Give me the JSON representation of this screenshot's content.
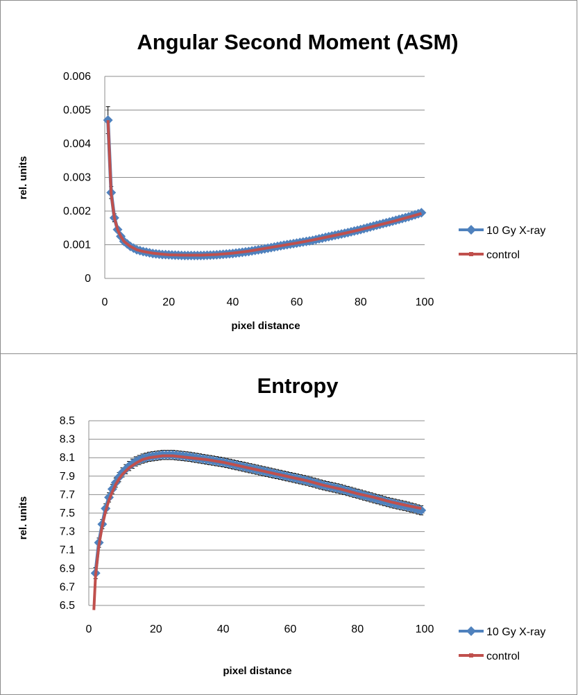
{
  "colors": {
    "xray": "#4f81bd",
    "control": "#c0504d",
    "grid": "#8c8c8c",
    "errorbar": "#000000"
  },
  "chart_data": [
    {
      "type": "line",
      "title": "Angular Second Moment (ASM)",
      "xlabel": "pixel distance",
      "ylabel": "rel. units",
      "xlim": [
        0,
        100
      ],
      "ylim": [
        0,
        0.006
      ],
      "xticks": [
        0,
        20,
        40,
        60,
        80,
        100
      ],
      "yticks": [
        0,
        0.001,
        0.002,
        0.003,
        0.004,
        0.005,
        0.006
      ],
      "ytick_labels": [
        "0",
        "0.001",
        "0.002",
        "0.003",
        "0.004",
        "0.005",
        "0.006"
      ],
      "grid": "horizontal",
      "legend": "right",
      "series": [
        {
          "name": "10 Gy X-ray",
          "marker": "diamond",
          "x": [
            1,
            2,
            3,
            4,
            5,
            6,
            8,
            10,
            12,
            15,
            18,
            20,
            25,
            30,
            35,
            40,
            45,
            50,
            55,
            60,
            65,
            70,
            75,
            80,
            85,
            90,
            95,
            99
          ],
          "y": [
            0.0047,
            0.00255,
            0.0018,
            0.00145,
            0.00125,
            0.0011,
            0.00095,
            0.00085,
            0.0008,
            0.00074,
            0.00071,
            0.0007,
            0.00068,
            0.00068,
            0.0007,
            0.00074,
            0.0008,
            0.00088,
            0.00097,
            0.00105,
            0.00113,
            0.00124,
            0.00134,
            0.00145,
            0.00158,
            0.0017,
            0.00183,
            0.00195
          ],
          "err": [
            0.0004,
            0.00018,
            0.00012,
            8e-05,
            6e-05,
            5e-05,
            5e-05,
            5e-05,
            5e-05,
            5e-05,
            5e-05,
            5e-05,
            5e-05,
            5e-05,
            5e-05,
            5e-05,
            5e-05,
            5e-05,
            5e-05,
            5e-05,
            5e-05,
            5e-05,
            5e-05,
            5e-05,
            5e-05,
            5e-05,
            5e-05,
            6e-05
          ]
        },
        {
          "name": "control",
          "x": [
            1,
            2,
            3,
            4,
            5,
            6,
            8,
            10,
            12,
            15,
            18,
            20,
            25,
            30,
            35,
            40,
            45,
            50,
            55,
            60,
            65,
            70,
            75,
            80,
            85,
            90,
            95,
            99
          ],
          "y": [
            0.0047,
            0.0025,
            0.0018,
            0.00145,
            0.00125,
            0.0011,
            0.00095,
            0.00085,
            0.0008,
            0.00075,
            0.00072,
            0.0007,
            0.00069,
            0.00069,
            0.00071,
            0.00075,
            0.00081,
            0.00089,
            0.00097,
            0.00105,
            0.00114,
            0.00124,
            0.00134,
            0.00145,
            0.00157,
            0.00169,
            0.00182,
            0.00193
          ]
        }
      ]
    },
    {
      "type": "line",
      "title": "Entropy",
      "xlabel": "pixel distance",
      "ylabel": "rel. units",
      "xlim": [
        0,
        100
      ],
      "ylim": [
        6.5,
        8.5
      ],
      "xticks": [
        0,
        20,
        40,
        60,
        80,
        100
      ],
      "yticks": [
        6.5,
        6.7,
        6.9,
        7.1,
        7.3,
        7.5,
        7.7,
        7.9,
        8.1,
        8.3,
        8.5
      ],
      "ytick_labels": [
        "6.5",
        "6.7",
        "6.9",
        "7.1",
        "7.3",
        "7.5",
        "7.7",
        "7.9",
        "8.1",
        "8.3",
        "8.5"
      ],
      "grid": "horizontal",
      "legend": "right",
      "series": [
        {
          "name": "10 Gy X-ray",
          "marker": "diamond",
          "x": [
            2,
            3,
            4,
            5,
            6,
            7,
            8,
            9,
            10,
            12,
            14,
            16,
            18,
            20,
            22,
            25,
            30,
            35,
            40,
            45,
            50,
            55,
            60,
            65,
            70,
            75,
            80,
            85,
            90,
            95,
            99
          ],
          "y": [
            6.85,
            7.18,
            7.38,
            7.55,
            7.67,
            7.76,
            7.83,
            7.89,
            7.94,
            8.01,
            8.06,
            8.09,
            8.11,
            8.12,
            8.13,
            8.13,
            8.11,
            8.08,
            8.05,
            8.01,
            7.97,
            7.93,
            7.89,
            7.85,
            7.8,
            7.76,
            7.71,
            7.66,
            7.61,
            7.57,
            7.53
          ],
          "err": [
            0.06,
            0.05,
            0.05,
            0.05,
            0.05,
            0.05,
            0.05,
            0.05,
            0.05,
            0.05,
            0.05,
            0.05,
            0.05,
            0.05,
            0.05,
            0.05,
            0.05,
            0.05,
            0.05,
            0.05,
            0.05,
            0.05,
            0.05,
            0.05,
            0.05,
            0.05,
            0.05,
            0.05,
            0.05,
            0.05,
            0.05
          ]
        },
        {
          "name": "control",
          "x": [
            1.5,
            2,
            3,
            4,
            5,
            6,
            7,
            8,
            9,
            10,
            12,
            14,
            16,
            18,
            20,
            22,
            25,
            30,
            35,
            40,
            45,
            50,
            55,
            60,
            65,
            70,
            75,
            80,
            85,
            90,
            95,
            99
          ],
          "y": [
            6.45,
            6.82,
            7.15,
            7.36,
            7.52,
            7.64,
            7.73,
            7.81,
            7.87,
            7.92,
            7.99,
            8.04,
            8.08,
            8.1,
            8.11,
            8.12,
            8.12,
            8.1,
            8.08,
            8.05,
            8.01,
            7.97,
            7.93,
            7.89,
            7.85,
            7.8,
            7.76,
            7.71,
            7.67,
            7.62,
            7.58,
            7.55
          ]
        }
      ]
    }
  ]
}
